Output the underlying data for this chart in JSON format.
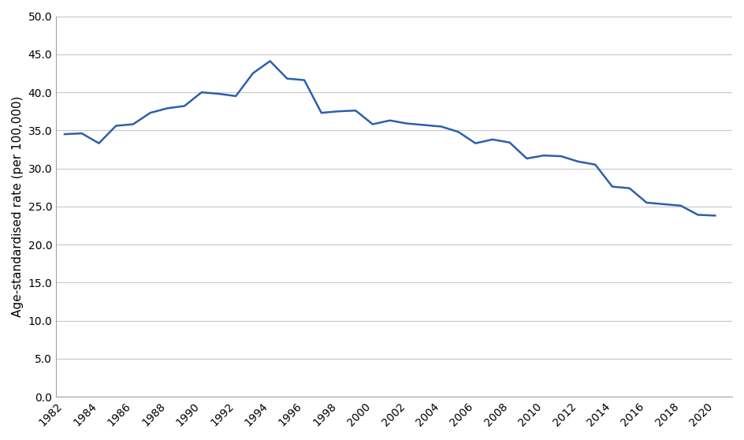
{
  "years": [
    1982,
    1983,
    1984,
    1985,
    1986,
    1987,
    1988,
    1989,
    1990,
    1991,
    1992,
    1993,
    1994,
    1995,
    1996,
    1997,
    1998,
    1999,
    2000,
    2001,
    2002,
    2003,
    2004,
    2005,
    2006,
    2007,
    2008,
    2009,
    2010,
    2011,
    2012,
    2013,
    2014,
    2015,
    2016,
    2017,
    2018,
    2019,
    2020
  ],
  "values": [
    34.5,
    34.6,
    33.3,
    35.6,
    35.8,
    37.3,
    37.9,
    38.2,
    40.0,
    39.8,
    39.5,
    42.5,
    44.1,
    41.8,
    41.6,
    37.3,
    37.5,
    37.6,
    35.8,
    36.3,
    35.9,
    35.7,
    35.5,
    34.8,
    33.3,
    33.8,
    33.4,
    31.3,
    31.7,
    31.6,
    30.9,
    30.5,
    27.6,
    27.4,
    25.5,
    25.3,
    25.1,
    23.9,
    23.8
  ],
  "line_color": "#2E5FAC",
  "line_width": 1.8,
  "ylabel": "Age-standardised rate (per 100,000)",
  "ylim": [
    0.0,
    50.0
  ],
  "yticks": [
    0.0,
    5.0,
    10.0,
    15.0,
    20.0,
    25.0,
    30.0,
    35.0,
    40.0,
    45.0,
    50.0
  ],
  "xlim_min": 1981.5,
  "xlim_max": 2021.0,
  "xticks": [
    1982,
    1984,
    1986,
    1988,
    1990,
    1992,
    1994,
    1996,
    1998,
    2000,
    2002,
    2004,
    2006,
    2008,
    2010,
    2012,
    2014,
    2016,
    2018,
    2020
  ],
  "grid_color": "#C8C8C8",
  "grid_linewidth": 0.8,
  "background_color": "#FFFFFF",
  "tick_fontsize": 10,
  "ylabel_fontsize": 11,
  "spine_color": "#A0A0A0"
}
